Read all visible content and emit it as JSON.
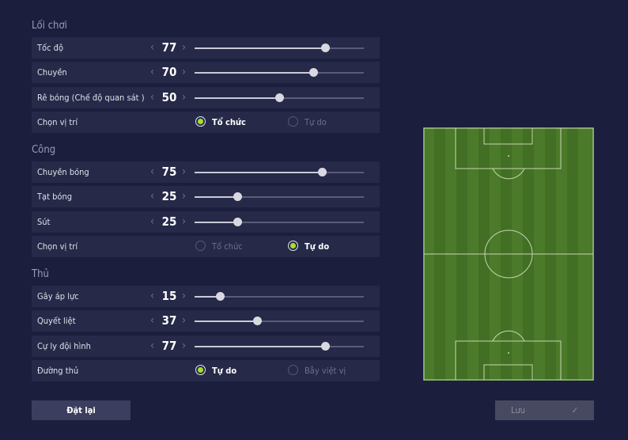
{
  "sections": [
    {
      "title": "Lối chơi",
      "rows": [
        {
          "label": "Tốc độ",
          "value": 77
        },
        {
          "label": "Chuyền",
          "value": 70
        },
        {
          "label": "Rê bóng (Chế độ quan sát )",
          "value": 50
        },
        {
          "label": "Chọn vị trí",
          "options": [
            "Tổ chức",
            "Tự do"
          ],
          "selected": 0
        }
      ]
    },
    {
      "title": "Công",
      "rows": [
        {
          "label": "Chuyền bóng",
          "value": 75
        },
        {
          "label": "Tạt bóng",
          "value": 25
        },
        {
          "label": "Sút",
          "value": 25
        },
        {
          "label": "Chọn vị trí",
          "options": [
            "Tổ chức",
            "Tự do"
          ],
          "selected": 1
        }
      ]
    },
    {
      "title": "Thủ",
      "rows": [
        {
          "label": "Gây áp lực",
          "value": 15
        },
        {
          "label": "Quyết liệt",
          "value": 37
        },
        {
          "label": "Cự ly đội hình",
          "value": 77
        },
        {
          "label": "Đường thủ",
          "options": [
            "Tự do",
            "Bẫy việt vị"
          ],
          "selected": 0
        }
      ]
    }
  ],
  "slider_scale": [
    0,
    100
  ],
  "buttons": {
    "reset": "Đặt lại",
    "save": "Lưu"
  }
}
